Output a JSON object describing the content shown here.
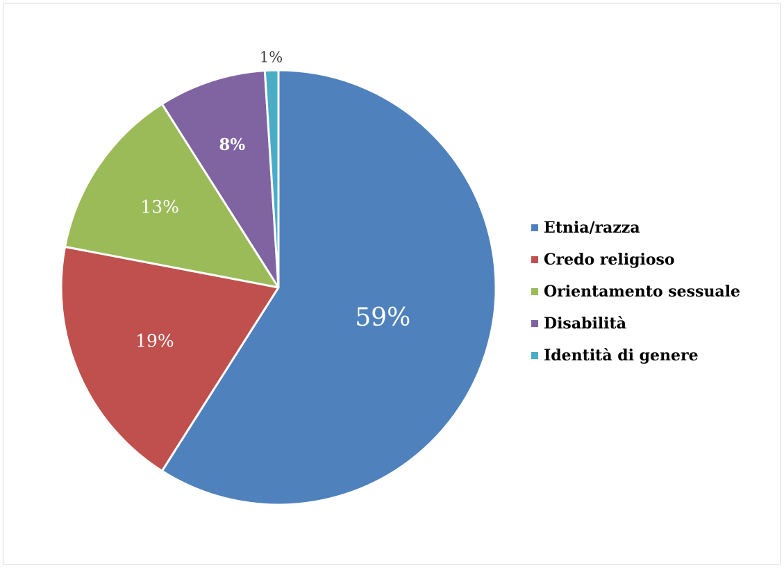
{
  "chart_data": {
    "type": "pie",
    "title": "",
    "categories": [
      "Etnia/razza",
      "Credo religioso",
      "Orientamento sessuale",
      "Disabilità",
      "Identità di genere"
    ],
    "values": [
      59,
      19,
      13,
      8,
      1
    ],
    "labels": [
      "59%",
      "19%",
      "13%",
      "8%",
      "1%"
    ],
    "colors": [
      "#4f81bd",
      "#c0504d",
      "#9bbb59",
      "#8064a2",
      "#4bacc6"
    ],
    "label_colors": [
      "#ffffff",
      "#ffffff",
      "#ffffff",
      "#ffffff",
      "#404040"
    ],
    "label_bold": [
      false,
      false,
      false,
      true,
      false
    ],
    "legend_position": "right",
    "start_angle": "top",
    "direction": "clockwise"
  }
}
